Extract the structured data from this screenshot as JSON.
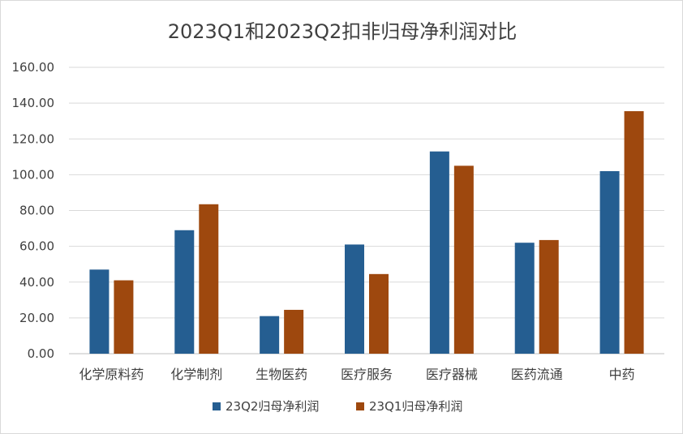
{
  "chart_data": {
    "type": "bar",
    "title": "2023Q1和2023Q2扣非归母净利润对比",
    "xlabel": "",
    "ylabel": "",
    "ylim": [
      0,
      160
    ],
    "y_ticks": [
      "0.00",
      "20.00",
      "40.00",
      "60.00",
      "80.00",
      "100.00",
      "120.00",
      "140.00",
      "160.00"
    ],
    "grid": true,
    "legend_position": "bottom",
    "categories": [
      "化学原料药",
      "化学制剂",
      "生物医药",
      "医疗服务",
      "医疗器械",
      "医药流通",
      "中药"
    ],
    "series": [
      {
        "name": "23Q2归母净利润",
        "color": "#255e91",
        "values": [
          47,
          69,
          21,
          61,
          113,
          62,
          102
        ]
      },
      {
        "name": "23Q1归母净利润",
        "color": "#9e480e",
        "values": [
          41,
          83.5,
          24.5,
          44.5,
          105,
          63.5,
          135.5
        ]
      }
    ]
  }
}
